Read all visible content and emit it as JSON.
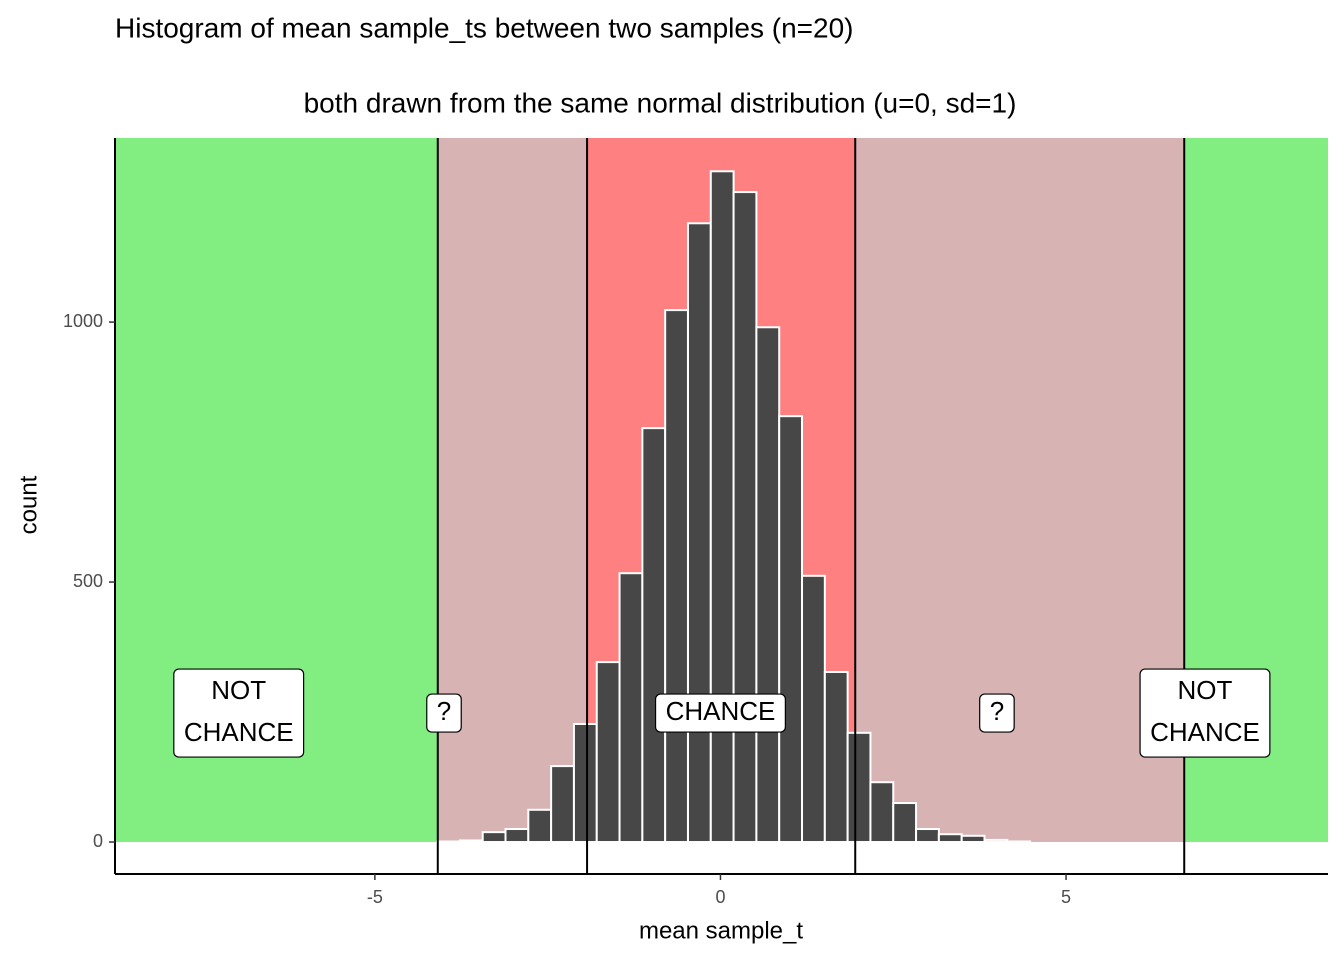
{
  "chart_data": {
    "type": "histogram",
    "title": "Histogram of mean sample_ts between two samples (n=20)",
    "subtitle": "both drawn from the same normal distribution (u=0, sd=1)",
    "x_label": "mean sample_t",
    "y_label": "count",
    "bins": [
      -4.1,
      -3.77,
      -3.44,
      -3.11,
      -2.78,
      -2.45,
      -2.12,
      -1.79,
      -1.46,
      -1.13,
      -0.8,
      -0.47,
      -0.14,
      0.19,
      0.52,
      0.85,
      1.18,
      1.51,
      1.84,
      2.17,
      2.5,
      2.83,
      3.16,
      3.49,
      3.82,
      4.15,
      4.48
    ],
    "values": [
      1,
      3,
      19,
      25,
      62,
      146,
      227,
      346,
      517,
      796,
      1023,
      1190,
      1290,
      1250,
      990,
      819,
      512,
      327,
      210,
      115,
      75,
      25,
      15,
      12,
      4,
      1
    ],
    "color": "#474747",
    "xlim": [
      -8.76,
      8.79
    ],
    "ylim": [
      -61.5,
      1354
    ],
    "xticks": [
      -5,
      0,
      5
    ],
    "yticks": [
      0,
      500,
      1000
    ],
    "vlines": [
      -4.09,
      -1.93,
      1.95,
      6.71
    ],
    "region_colors": [
      "#82ee82",
      "#d8b3b3",
      "#ff8080",
      "#d8b3b3",
      "#82ee82"
    ],
    "annotations": [
      {
        "x": -6.97,
        "y": 248,
        "lines": [
          "NOT",
          "CHANCE"
        ]
      },
      {
        "x": -4.0,
        "y": 248,
        "lines": [
          "?"
        ]
      },
      {
        "x": 0,
        "y": 248,
        "lines": [
          "CHANCE"
        ]
      },
      {
        "x": 4.0,
        "y": 248,
        "lines": [
          "?"
        ]
      },
      {
        "x": 7.01,
        "y": 248,
        "lines": [
          "NOT",
          "CHANCE"
        ]
      }
    ]
  }
}
